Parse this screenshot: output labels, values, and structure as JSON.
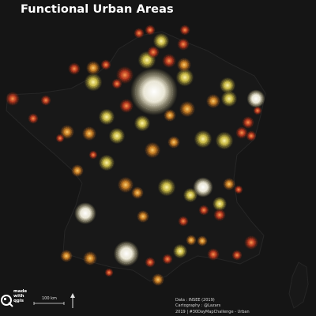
{
  "title": "Functional Urban Areas",
  "credits": {
    "line1": "Data : INSEE (2019)",
    "line2": "Cartography : @Lazars",
    "line3": "2019 | #30DayMapChallenge - Urban"
  },
  "scale_bar": {
    "label": "100 km"
  },
  "logo": {
    "made": "made",
    "with": "with",
    "qgis": "qgis"
  },
  "colors": {
    "background": "#151515",
    "outline": "#2a2a2a",
    "small_area": "#c8391e",
    "medium_area": "#e8a12a",
    "large_area": "#e8e05a",
    "metropolis": "#ffffff"
  },
  "icons": [
    "qgis-logo-icon",
    "north-arrow-icon",
    "scale-bar-icon"
  ]
}
